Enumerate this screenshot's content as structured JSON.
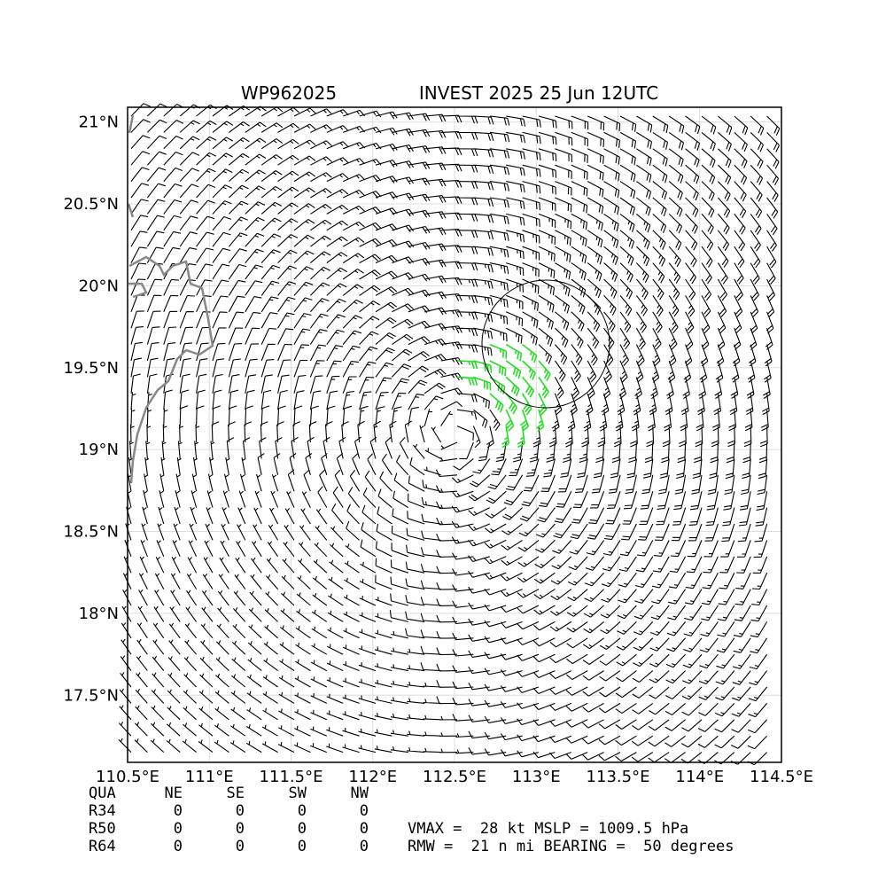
{
  "map": {
    "title_left": "WP962025",
    "title_right": "INVEST 2025 25 Jun 12UTC",
    "xlim": [
      110.5,
      114.5
    ],
    "ylim": [
      17.09,
      21.09
    ],
    "xticks": [
      {
        "value": 110.5,
        "label": "110.5°E"
      },
      {
        "value": 111,
        "label": "111°E"
      },
      {
        "value": 111.5,
        "label": "111.5°E"
      },
      {
        "value": 112,
        "label": "112°E"
      },
      {
        "value": 112.5,
        "label": "112.5°E"
      },
      {
        "value": 113,
        "label": "113°E"
      },
      {
        "value": 113.5,
        "label": "113.5°E"
      },
      {
        "value": 114,
        "label": "114°E"
      },
      {
        "value": 114.5,
        "label": "114.5°E"
      }
    ],
    "yticks": [
      {
        "value": 17.5,
        "label": "17.5°N"
      },
      {
        "value": 18,
        "label": "18°N"
      },
      {
        "value": 18.5,
        "label": "18.5°N"
      },
      {
        "value": 19,
        "label": "19°N"
      },
      {
        "value": 19.5,
        "label": "19.5°N"
      },
      {
        "value": 20,
        "label": "20°N"
      },
      {
        "value": 20.5,
        "label": "20.5°N"
      },
      {
        "value": 21,
        "label": "21°N"
      }
    ]
  },
  "table": {
    "header": [
      "QUA",
      "NE",
      "SE",
      "SW",
      "NW"
    ],
    "rows": [
      [
        "R34",
        0,
        0,
        0,
        0
      ],
      [
        "R50",
        0,
        0,
        0,
        0
      ],
      [
        "R64",
        0,
        0,
        0,
        0
      ]
    ]
  },
  "stats": [
    "VMAX =  28 kt MSLP = 1009.5 hPa",
    "RMW =  21 n mi BEARING =  50 degrees"
  ]
}
